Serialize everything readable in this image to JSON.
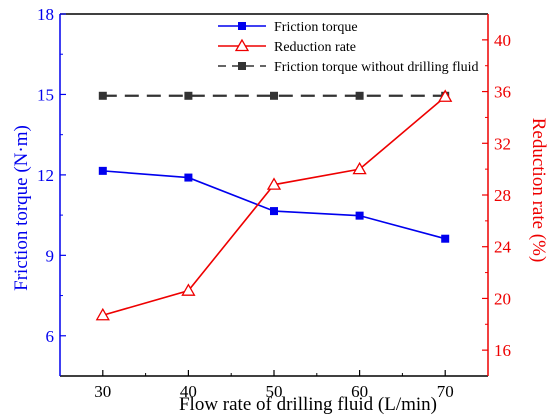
{
  "chart_data": {
    "type": "line",
    "x": [
      30,
      40,
      50,
      60,
      70
    ],
    "xlabel": "Flow rate of drilling fluid (L/min)",
    "xlim": [
      25,
      75
    ],
    "xticks": [
      30,
      40,
      50,
      60,
      70
    ],
    "ylabel_left": "Friction torque (N·m)",
    "ylim_left": [
      4.5,
      18
    ],
    "yticks_left": [
      6,
      9,
      12,
      15,
      18
    ],
    "ylabel_right": "Reduction rate (%)",
    "ylim_right": [
      14,
      42
    ],
    "yticks_right": [
      16,
      20,
      24,
      28,
      32,
      36,
      40
    ],
    "grid": false,
    "legend_position": "top-right",
    "series": [
      {
        "name": "Friction torque",
        "axis": "left",
        "color": "#0000ee",
        "marker": "square-filled",
        "dash": "solid",
        "values": [
          12.15,
          11.9,
          10.65,
          10.48,
          9.62
        ]
      },
      {
        "name": "Reduction rate",
        "axis": "right",
        "color": "#ee0000",
        "marker": "triangle-open",
        "dash": "solid",
        "values": [
          18.7,
          20.6,
          28.8,
          30.0,
          35.6
        ]
      },
      {
        "name": "Friction torque without drilling fluid",
        "axis": "left",
        "color": "#333333",
        "marker": "square-filled",
        "dash": "dashed",
        "values": [
          14.95,
          14.95,
          14.95,
          14.95,
          14.95
        ]
      }
    ],
    "colors": {
      "left_axis": "#0000ee",
      "right_axis": "#ee0000",
      "frame": "#000000"
    }
  }
}
